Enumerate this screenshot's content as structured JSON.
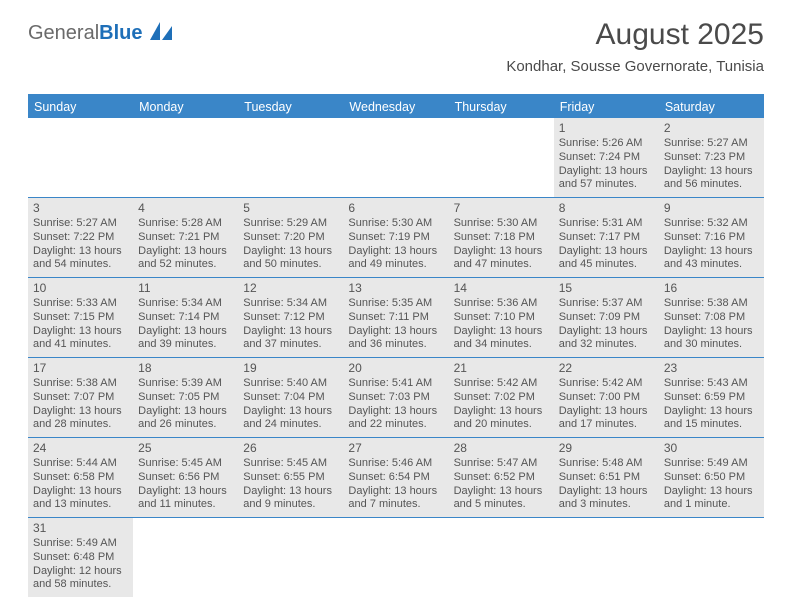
{
  "brand": {
    "part1": "General",
    "part2": "Blue",
    "shape_color": "#1e6fb8"
  },
  "title": "August 2025",
  "location": "Kondhar, Sousse Governorate, Tunisia",
  "colors": {
    "header_bg": "#3a86c8",
    "header_text": "#ffffff",
    "border": "#3a86c8",
    "shaded_bg": "#e8e8e8",
    "body_text": "#555555",
    "title_text": "#4a4a4a",
    "brand_gray": "#6a6a6a"
  },
  "weekdays": [
    "Sunday",
    "Monday",
    "Tuesday",
    "Wednesday",
    "Thursday",
    "Friday",
    "Saturday"
  ],
  "weeks": [
    [
      {
        "empty": true
      },
      {
        "empty": true
      },
      {
        "empty": true
      },
      {
        "empty": true
      },
      {
        "empty": true
      },
      {
        "num": "1",
        "shaded": true,
        "sunrise": "Sunrise: 5:26 AM",
        "sunset": "Sunset: 7:24 PM",
        "daylight1": "Daylight: 13 hours",
        "daylight2": "and 57 minutes."
      },
      {
        "num": "2",
        "shaded": true,
        "sunrise": "Sunrise: 5:27 AM",
        "sunset": "Sunset: 7:23 PM",
        "daylight1": "Daylight: 13 hours",
        "daylight2": "and 56 minutes."
      }
    ],
    [
      {
        "num": "3",
        "shaded": true,
        "sunrise": "Sunrise: 5:27 AM",
        "sunset": "Sunset: 7:22 PM",
        "daylight1": "Daylight: 13 hours",
        "daylight2": "and 54 minutes."
      },
      {
        "num": "4",
        "shaded": true,
        "sunrise": "Sunrise: 5:28 AM",
        "sunset": "Sunset: 7:21 PM",
        "daylight1": "Daylight: 13 hours",
        "daylight2": "and 52 minutes."
      },
      {
        "num": "5",
        "shaded": true,
        "sunrise": "Sunrise: 5:29 AM",
        "sunset": "Sunset: 7:20 PM",
        "daylight1": "Daylight: 13 hours",
        "daylight2": "and 50 minutes."
      },
      {
        "num": "6",
        "shaded": true,
        "sunrise": "Sunrise: 5:30 AM",
        "sunset": "Sunset: 7:19 PM",
        "daylight1": "Daylight: 13 hours",
        "daylight2": "and 49 minutes."
      },
      {
        "num": "7",
        "shaded": true,
        "sunrise": "Sunrise: 5:30 AM",
        "sunset": "Sunset: 7:18 PM",
        "daylight1": "Daylight: 13 hours",
        "daylight2": "and 47 minutes."
      },
      {
        "num": "8",
        "shaded": true,
        "sunrise": "Sunrise: 5:31 AM",
        "sunset": "Sunset: 7:17 PM",
        "daylight1": "Daylight: 13 hours",
        "daylight2": "and 45 minutes."
      },
      {
        "num": "9",
        "shaded": true,
        "sunrise": "Sunrise: 5:32 AM",
        "sunset": "Sunset: 7:16 PM",
        "daylight1": "Daylight: 13 hours",
        "daylight2": "and 43 minutes."
      }
    ],
    [
      {
        "num": "10",
        "shaded": true,
        "sunrise": "Sunrise: 5:33 AM",
        "sunset": "Sunset: 7:15 PM",
        "daylight1": "Daylight: 13 hours",
        "daylight2": "and 41 minutes."
      },
      {
        "num": "11",
        "shaded": true,
        "sunrise": "Sunrise: 5:34 AM",
        "sunset": "Sunset: 7:14 PM",
        "daylight1": "Daylight: 13 hours",
        "daylight2": "and 39 minutes."
      },
      {
        "num": "12",
        "shaded": true,
        "sunrise": "Sunrise: 5:34 AM",
        "sunset": "Sunset: 7:12 PM",
        "daylight1": "Daylight: 13 hours",
        "daylight2": "and 37 minutes."
      },
      {
        "num": "13",
        "shaded": true,
        "sunrise": "Sunrise: 5:35 AM",
        "sunset": "Sunset: 7:11 PM",
        "daylight1": "Daylight: 13 hours",
        "daylight2": "and 36 minutes."
      },
      {
        "num": "14",
        "shaded": true,
        "sunrise": "Sunrise: 5:36 AM",
        "sunset": "Sunset: 7:10 PM",
        "daylight1": "Daylight: 13 hours",
        "daylight2": "and 34 minutes."
      },
      {
        "num": "15",
        "shaded": true,
        "sunrise": "Sunrise: 5:37 AM",
        "sunset": "Sunset: 7:09 PM",
        "daylight1": "Daylight: 13 hours",
        "daylight2": "and 32 minutes."
      },
      {
        "num": "16",
        "shaded": true,
        "sunrise": "Sunrise: 5:38 AM",
        "sunset": "Sunset: 7:08 PM",
        "daylight1": "Daylight: 13 hours",
        "daylight2": "and 30 minutes."
      }
    ],
    [
      {
        "num": "17",
        "shaded": true,
        "sunrise": "Sunrise: 5:38 AM",
        "sunset": "Sunset: 7:07 PM",
        "daylight1": "Daylight: 13 hours",
        "daylight2": "and 28 minutes."
      },
      {
        "num": "18",
        "shaded": true,
        "sunrise": "Sunrise: 5:39 AM",
        "sunset": "Sunset: 7:05 PM",
        "daylight1": "Daylight: 13 hours",
        "daylight2": "and 26 minutes."
      },
      {
        "num": "19",
        "shaded": true,
        "sunrise": "Sunrise: 5:40 AM",
        "sunset": "Sunset: 7:04 PM",
        "daylight1": "Daylight: 13 hours",
        "daylight2": "and 24 minutes."
      },
      {
        "num": "20",
        "shaded": true,
        "sunrise": "Sunrise: 5:41 AM",
        "sunset": "Sunset: 7:03 PM",
        "daylight1": "Daylight: 13 hours",
        "daylight2": "and 22 minutes."
      },
      {
        "num": "21",
        "shaded": true,
        "sunrise": "Sunrise: 5:42 AM",
        "sunset": "Sunset: 7:02 PM",
        "daylight1": "Daylight: 13 hours",
        "daylight2": "and 20 minutes."
      },
      {
        "num": "22",
        "shaded": true,
        "sunrise": "Sunrise: 5:42 AM",
        "sunset": "Sunset: 7:00 PM",
        "daylight1": "Daylight: 13 hours",
        "daylight2": "and 17 minutes."
      },
      {
        "num": "23",
        "shaded": true,
        "sunrise": "Sunrise: 5:43 AM",
        "sunset": "Sunset: 6:59 PM",
        "daylight1": "Daylight: 13 hours",
        "daylight2": "and 15 minutes."
      }
    ],
    [
      {
        "num": "24",
        "shaded": true,
        "sunrise": "Sunrise: 5:44 AM",
        "sunset": "Sunset: 6:58 PM",
        "daylight1": "Daylight: 13 hours",
        "daylight2": "and 13 minutes."
      },
      {
        "num": "25",
        "shaded": true,
        "sunrise": "Sunrise: 5:45 AM",
        "sunset": "Sunset: 6:56 PM",
        "daylight1": "Daylight: 13 hours",
        "daylight2": "and 11 minutes."
      },
      {
        "num": "26",
        "shaded": true,
        "sunrise": "Sunrise: 5:45 AM",
        "sunset": "Sunset: 6:55 PM",
        "daylight1": "Daylight: 13 hours",
        "daylight2": "and 9 minutes."
      },
      {
        "num": "27",
        "shaded": true,
        "sunrise": "Sunrise: 5:46 AM",
        "sunset": "Sunset: 6:54 PM",
        "daylight1": "Daylight: 13 hours",
        "daylight2": "and 7 minutes."
      },
      {
        "num": "28",
        "shaded": true,
        "sunrise": "Sunrise: 5:47 AM",
        "sunset": "Sunset: 6:52 PM",
        "daylight1": "Daylight: 13 hours",
        "daylight2": "and 5 minutes."
      },
      {
        "num": "29",
        "shaded": true,
        "sunrise": "Sunrise: 5:48 AM",
        "sunset": "Sunset: 6:51 PM",
        "daylight1": "Daylight: 13 hours",
        "daylight2": "and 3 minutes."
      },
      {
        "num": "30",
        "shaded": true,
        "sunrise": "Sunrise: 5:49 AM",
        "sunset": "Sunset: 6:50 PM",
        "daylight1": "Daylight: 13 hours",
        "daylight2": "and 1 minute."
      }
    ],
    [
      {
        "num": "31",
        "shaded": true,
        "sunrise": "Sunrise: 5:49 AM",
        "sunset": "Sunset: 6:48 PM",
        "daylight1": "Daylight: 12 hours",
        "daylight2": "and 58 minutes."
      },
      {
        "empty": true
      },
      {
        "empty": true
      },
      {
        "empty": true
      },
      {
        "empty": true
      },
      {
        "empty": true
      },
      {
        "empty": true
      }
    ]
  ]
}
